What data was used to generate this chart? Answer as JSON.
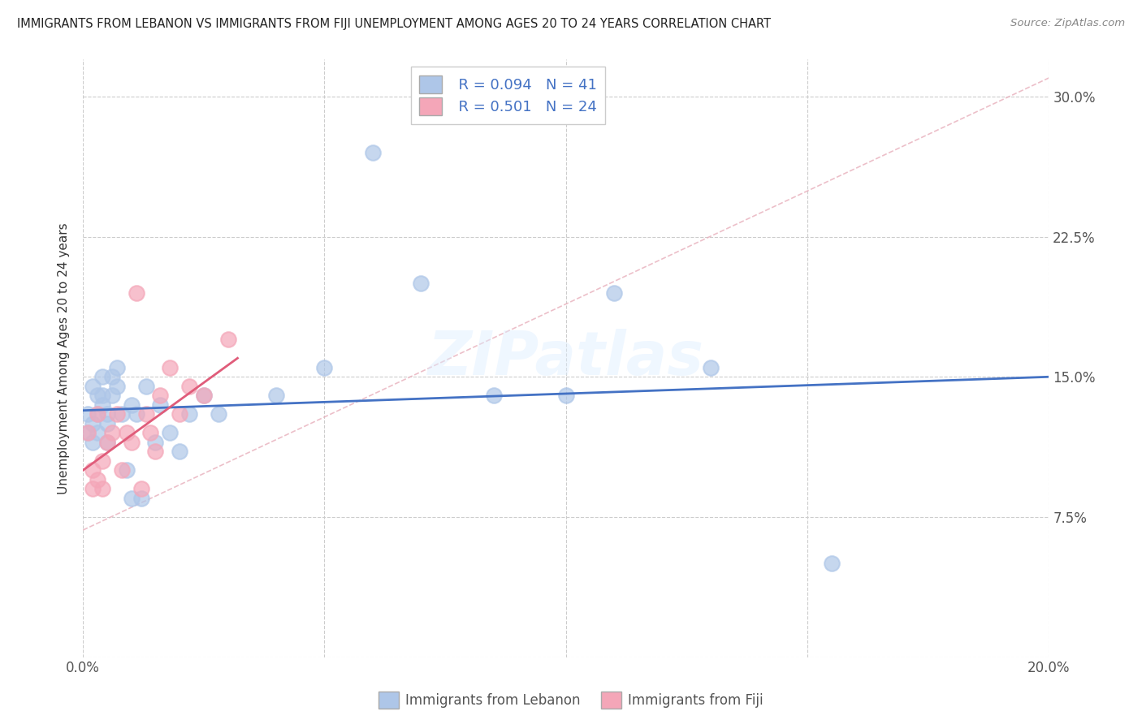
{
  "title": "IMMIGRANTS FROM LEBANON VS IMMIGRANTS FROM FIJI UNEMPLOYMENT AMONG AGES 20 TO 24 YEARS CORRELATION CHART",
  "source": "Source: ZipAtlas.com",
  "ylabel": "Unemployment Among Ages 20 to 24 years",
  "xlim": [
    0.0,
    0.2
  ],
  "ylim": [
    0.0,
    0.32
  ],
  "xticks": [
    0.0,
    0.05,
    0.1,
    0.15,
    0.2
  ],
  "xticklabels": [
    "0.0%",
    "",
    "",
    "",
    "20.0%"
  ],
  "yticks": [
    0.0,
    0.075,
    0.15,
    0.225,
    0.3
  ],
  "yticklabels": [
    "",
    "7.5%",
    "15.0%",
    "22.5%",
    "30.0%"
  ],
  "legend_r_lebanon": "R = 0.094",
  "legend_n_lebanon": "N = 41",
  "legend_r_fiji": "R = 0.501",
  "legend_n_fiji": "N = 24",
  "watermark": "ZIPatlas",
  "lebanon_color": "#aec6e8",
  "fiji_color": "#f4a6b8",
  "lebanon_line_color": "#4472c4",
  "fiji_line_color": "#e05c7a",
  "lebanon_x": [
    0.001,
    0.001,
    0.002,
    0.002,
    0.002,
    0.003,
    0.003,
    0.003,
    0.004,
    0.004,
    0.004,
    0.005,
    0.005,
    0.005,
    0.006,
    0.006,
    0.007,
    0.007,
    0.008,
    0.009,
    0.01,
    0.01,
    0.011,
    0.012,
    0.013,
    0.015,
    0.016,
    0.018,
    0.02,
    0.022,
    0.025,
    0.028,
    0.04,
    0.05,
    0.06,
    0.07,
    0.085,
    0.1,
    0.11,
    0.13,
    0.155
  ],
  "lebanon_y": [
    0.13,
    0.12,
    0.125,
    0.145,
    0.115,
    0.14,
    0.13,
    0.12,
    0.135,
    0.14,
    0.15,
    0.13,
    0.125,
    0.115,
    0.14,
    0.15,
    0.155,
    0.145,
    0.13,
    0.1,
    0.135,
    0.085,
    0.13,
    0.085,
    0.145,
    0.115,
    0.135,
    0.12,
    0.11,
    0.13,
    0.14,
    0.13,
    0.14,
    0.155,
    0.27,
    0.2,
    0.14,
    0.14,
    0.195,
    0.155,
    0.05
  ],
  "fiji_x": [
    0.001,
    0.002,
    0.002,
    0.003,
    0.003,
    0.004,
    0.004,
    0.005,
    0.006,
    0.007,
    0.008,
    0.009,
    0.01,
    0.011,
    0.012,
    0.013,
    0.014,
    0.015,
    0.016,
    0.018,
    0.02,
    0.022,
    0.025,
    0.03
  ],
  "fiji_y": [
    0.12,
    0.1,
    0.09,
    0.13,
    0.095,
    0.105,
    0.09,
    0.115,
    0.12,
    0.13,
    0.1,
    0.12,
    0.115,
    0.195,
    0.09,
    0.13,
    0.12,
    0.11,
    0.14,
    0.155,
    0.13,
    0.145,
    0.14,
    0.17
  ],
  "leb_line_x0": 0.0,
  "leb_line_x1": 0.2,
  "leb_line_y0": 0.132,
  "leb_line_y1": 0.15,
  "fiji_line_x0": 0.0,
  "fiji_line_x1": 0.032,
  "fiji_line_y0": 0.1,
  "fiji_line_y1": 0.16,
  "ref_line_x0": 0.0,
  "ref_line_x1": 0.2,
  "ref_line_y0": 0.068,
  "ref_line_y1": 0.31
}
